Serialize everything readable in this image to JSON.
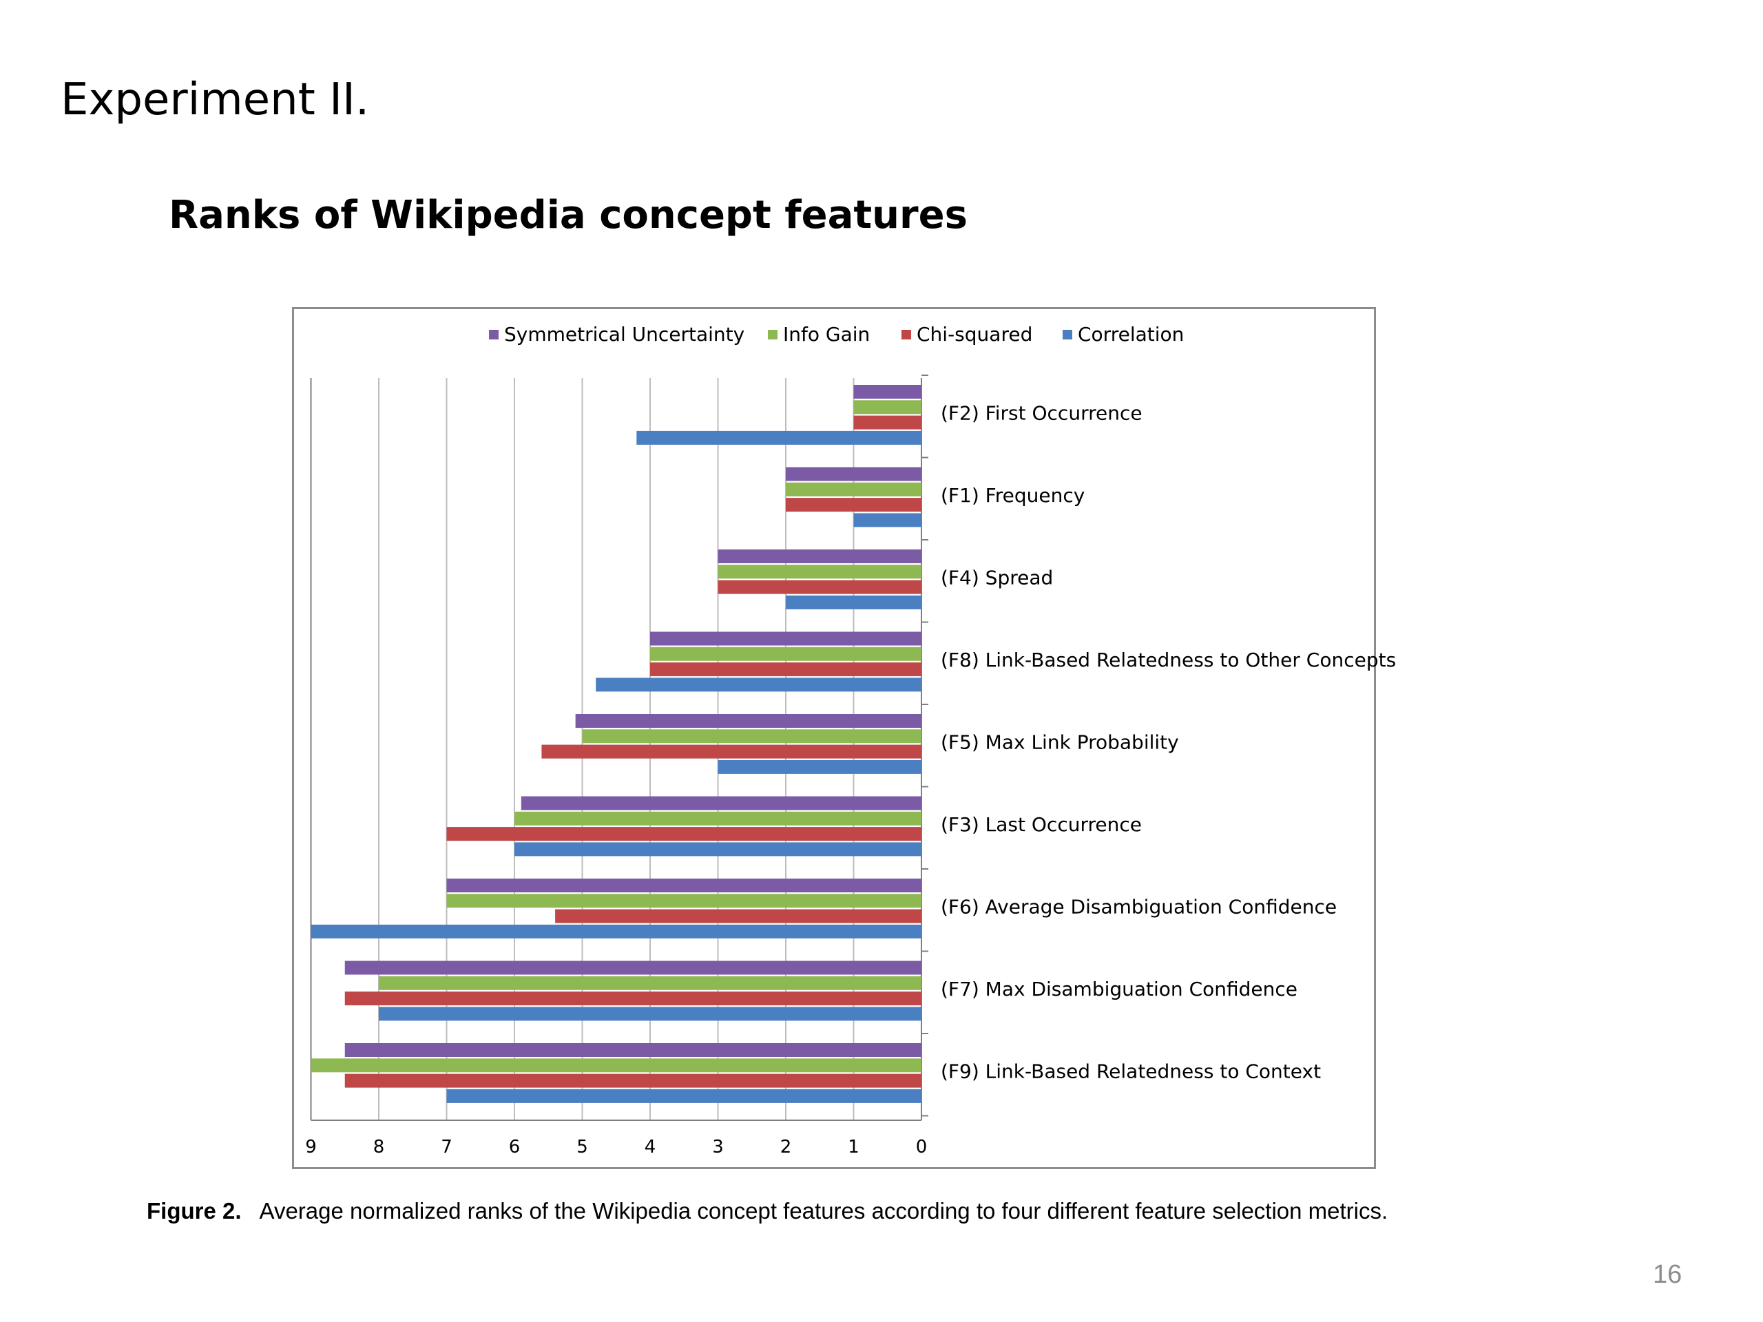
{
  "slide": {
    "title": "Experiment II.",
    "subtitle": "Ranks of Wikipedia concept features",
    "page_number": "16"
  },
  "caption": {
    "label": "Figure 2.",
    "text": "Average normalized ranks of the Wikipedia concept features according to four different feature selection metrics."
  },
  "chart_data": {
    "type": "bar",
    "orientation": "horizontal",
    "x_axis_reversed": true,
    "xlim": [
      0,
      9
    ],
    "x_ticks": [
      "9",
      "8",
      "7",
      "6",
      "5",
      "4",
      "3",
      "2",
      "1",
      "0"
    ],
    "grid": "vertical gridlines",
    "legend_position": "top",
    "categories": [
      "(F2) First Occurrence",
      "(F1) Frequency",
      "(F4) Spread",
      "(F8) Link-Based Relatedness to Other Concepts",
      "(F5) Max Link Probability",
      "(F3) Last Occurrence",
      "(F6) Average Disambiguation Confidence",
      "(F7) Max Disambiguation Confidence",
      "(F9) Link-Based Relatedness to Context"
    ],
    "series": [
      {
        "name": "Symmetrical Uncertainty",
        "color": "#7b5aa6",
        "values": [
          1,
          2,
          3,
          4,
          5.1,
          5.9,
          7,
          8.5,
          8.5
        ]
      },
      {
        "name": "Info Gain",
        "color": "#8db852",
        "values": [
          1,
          2,
          3,
          4,
          5,
          6,
          7,
          8,
          9
        ]
      },
      {
        "name": "Chi-squared",
        "color": "#bf4747",
        "values": [
          1,
          2,
          3,
          4,
          5.6,
          7,
          5.4,
          8.5,
          8.5
        ]
      },
      {
        "name": "Correlation",
        "color": "#4a7fc1",
        "values": [
          4.2,
          1,
          2,
          4.8,
          3,
          6,
          9,
          8,
          7
        ]
      }
    ],
    "legend_order": [
      "Symmetrical Uncertainty",
      "Info Gain",
      "Chi-squared",
      "Correlation"
    ]
  }
}
